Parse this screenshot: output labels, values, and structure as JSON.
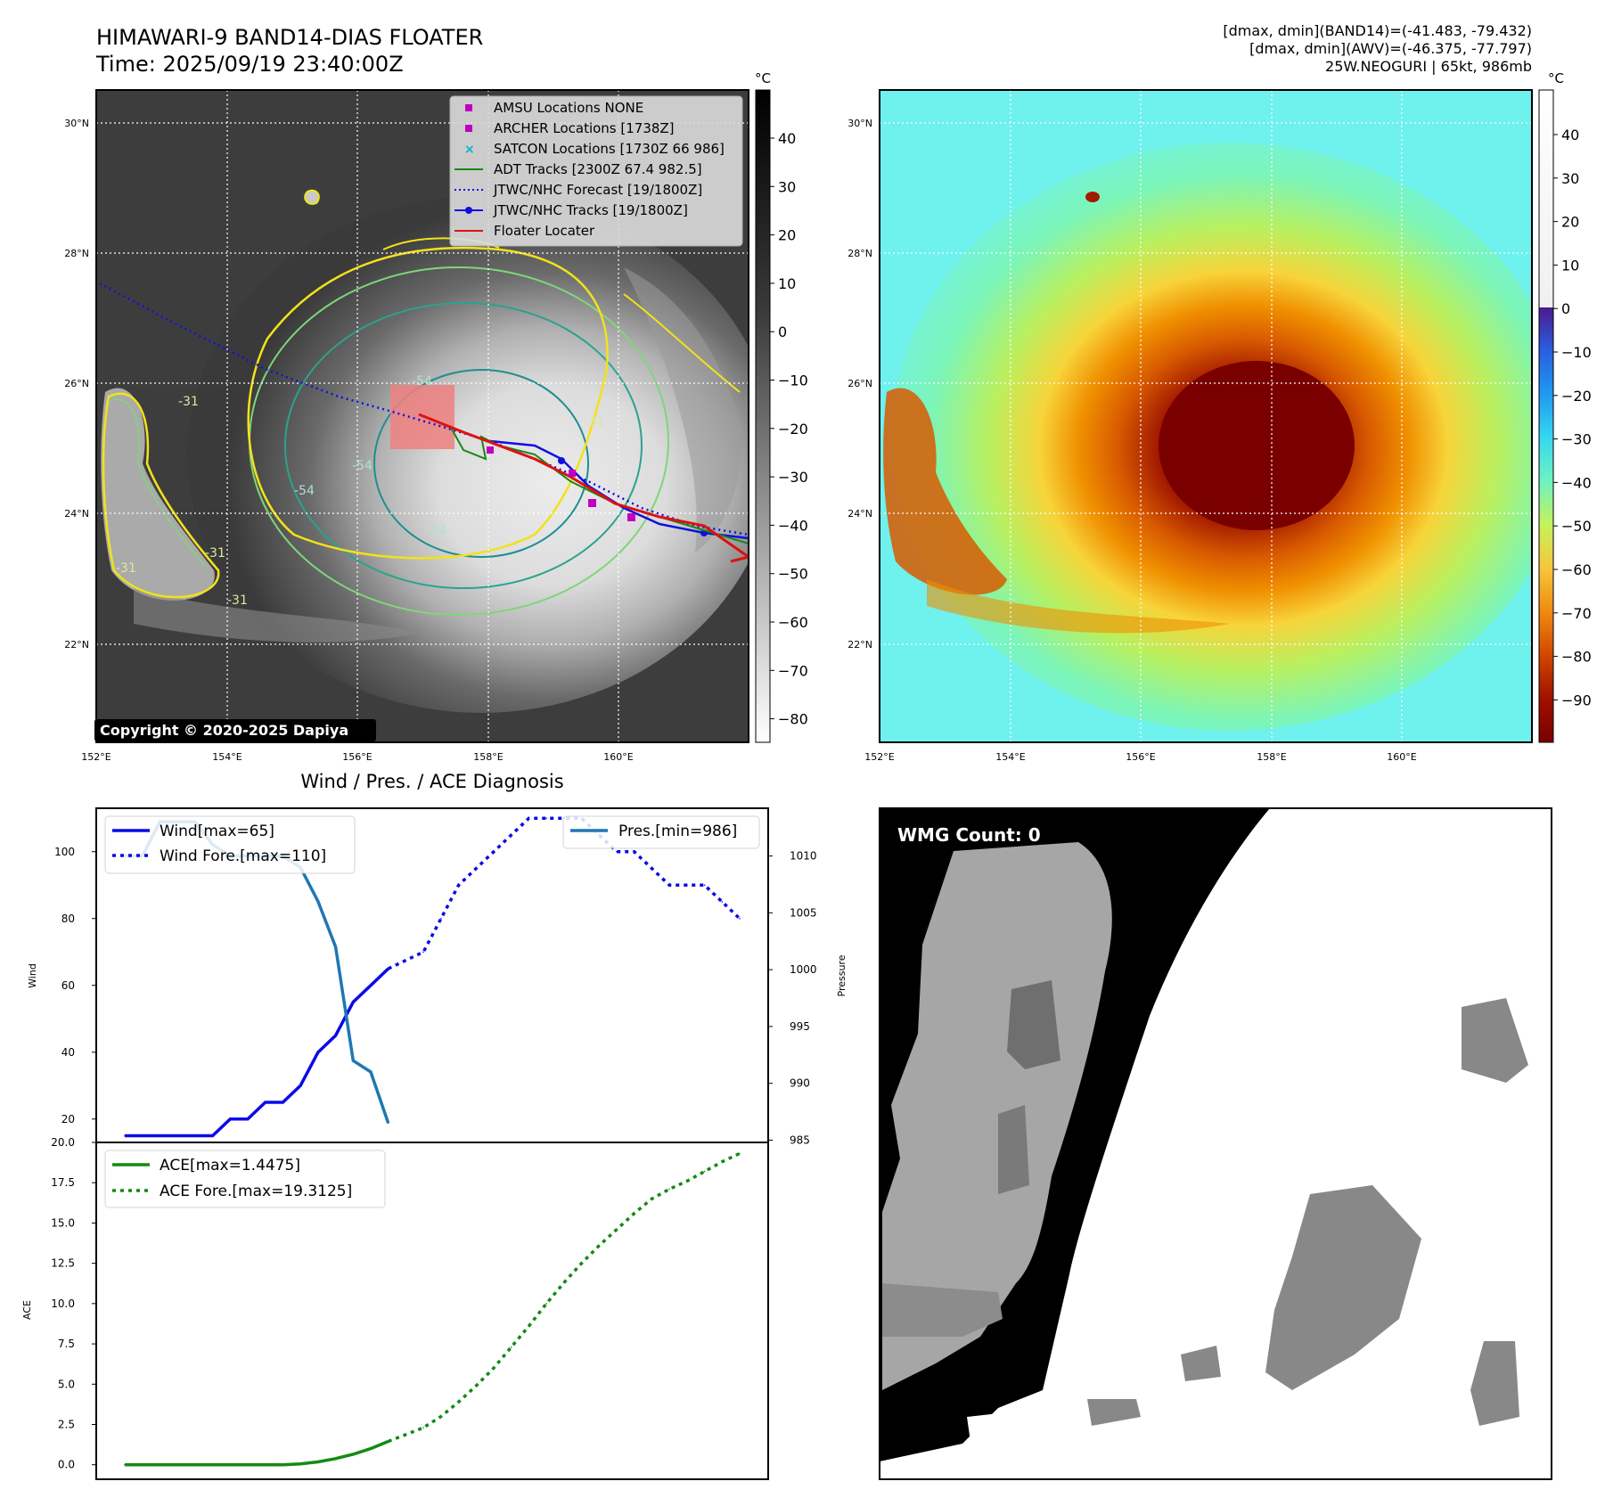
{
  "header": {
    "title_line1": "HIMAWARI-9 BAND14-DIAS FLOATER",
    "title_line2": "Time: 2025/09/19 23:40:00Z",
    "right_line1": "[dmax, dmin](BAND14)=(-41.483, -79.432)",
    "right_line2": "[dmax, dmin](AWV)=(-46.375, -77.797)",
    "right_line3": "25W.NEOGURI | 65kt, 986mb"
  },
  "maps": {
    "lat_labels": [
      "30°N",
      "28°N",
      "26°N",
      "24°N",
      "22°N"
    ],
    "lon_labels": [
      "152°E",
      "154°E",
      "156°E",
      "158°E",
      "160°E"
    ],
    "copyright": "Copyright © 2020-2025 Dapiya",
    "legend": [
      {
        "label": "AMSU Locations NONE",
        "kind": "square",
        "color": "#c000c0"
      },
      {
        "label": "ARCHER Locations [1738Z]",
        "kind": "square",
        "color": "#c000c0"
      },
      {
        "label": "SATCON Locations [1730Z 66 986]",
        "kind": "x",
        "color": "#00b5c8"
      },
      {
        "label": "ADT Tracks [2300Z 67.4 982.5]",
        "kind": "line",
        "color": "#138a13"
      },
      {
        "label": "JTWC/NHC Forecast [19/1800Z]",
        "kind": "dotted",
        "color": "#1010e0"
      },
      {
        "label": "JTWC/NHC Tracks [19/1800Z]",
        "kind": "dotline",
        "color": "#1010e0"
      },
      {
        "label": "Floater Locater",
        "kind": "line",
        "color": "#e01010"
      }
    ],
    "left_colorbar": {
      "unit": "°C",
      "ticks": [
        "40",
        "30",
        "20",
        "10",
        "0",
        "−10",
        "−20",
        "−30",
        "−40",
        "−50",
        "−60",
        "−70",
        "−80"
      ]
    },
    "right_colorbar": {
      "unit": "°C",
      "ticks": [
        "40",
        "30",
        "20",
        "10",
        "0",
        "−10",
        "−20",
        "−30",
        "−40",
        "−50",
        "−60",
        "−70",
        "−80",
        "−90"
      ]
    },
    "contour_labels": [
      "-31",
      "-31",
      "-31",
      "-31",
      "-31",
      "-54",
      "-54",
      "-54",
      "-54"
    ]
  },
  "wmg": {
    "label": "WMG Count: 0"
  },
  "chart_data": [
    {
      "type": "line",
      "title": "Wind / Pres. / ACE Diagnosis",
      "ylabel": "Wind",
      "ylabel2": "Pressure",
      "y_ticks": [
        "20",
        "40",
        "60",
        "80",
        "100"
      ],
      "y2_ticks": [
        "985",
        "990",
        "995",
        "1000",
        "1005",
        "1010"
      ],
      "ylim": [
        13,
        113
      ],
      "y2lim": [
        984.8,
        1014.2
      ],
      "legend_left": [
        "Wind[max=65]",
        "Wind Fore.[max=110]"
      ],
      "legend_right": [
        "Pres.[min=986]"
      ],
      "series": [
        {
          "name": "Wind[max=65]",
          "axis": "left",
          "style": "solid",
          "color": "#0a0ae8",
          "x": [
            0,
            1,
            2,
            3,
            4,
            5,
            6,
            7,
            8,
            9,
            10,
            11,
            12,
            13,
            14,
            15
          ],
          "values": [
            15,
            15,
            15,
            15,
            15,
            15,
            20,
            20,
            25,
            25,
            30,
            40,
            45,
            55,
            60,
            65
          ]
        },
        {
          "name": "Wind Fore.[max=110]",
          "axis": "left",
          "style": "dotted",
          "color": "#0a0ae8",
          "x": [
            15,
            17,
            18,
            19,
            20,
            21,
            22,
            23,
            24,
            25,
            26,
            27,
            28,
            29,
            30,
            31,
            32,
            33,
            34,
            35
          ],
          "values": [
            65,
            70,
            80,
            90,
            95,
            100,
            105,
            110,
            110,
            110,
            110,
            105,
            100,
            100,
            95,
            90,
            90,
            90,
            85,
            80
          ]
        },
        {
          "name": "Pres.[min=986]",
          "axis": "right",
          "style": "solid",
          "color": "#1f77b4",
          "x": [
            0,
            1,
            2,
            3,
            4,
            5,
            6,
            7,
            8,
            9,
            10,
            11,
            12,
            13,
            14,
            15
          ],
          "values": [
            1010,
            1010,
            1013,
            1013,
            1013,
            1011,
            1010,
            1010,
            1010,
            1010,
            1009,
            1006,
            1002,
            992,
            991,
            986.5
          ]
        }
      ],
      "x_min": 0,
      "x_max": 35
    },
    {
      "type": "line",
      "ylabel": "ACE",
      "y_ticks": [
        "0.0",
        "2.5",
        "5.0",
        "7.5",
        "10.0",
        "12.5",
        "15.0",
        "17.5",
        "20.0"
      ],
      "ylim": [
        -0.9,
        20.0
      ],
      "legend": [
        "ACE[max=1.4475]",
        "ACE Fore.[max=19.3125]"
      ],
      "series": [
        {
          "name": "ACE[max=1.4475]",
          "style": "solid",
          "color": "#138a13",
          "x": [
            0,
            2,
            4,
            6,
            8,
            9,
            10,
            11,
            12,
            13,
            14,
            15
          ],
          "values": [
            0,
            0,
            0,
            0,
            0,
            0,
            0.05,
            0.18,
            0.38,
            0.65,
            1.0,
            1.4475
          ]
        },
        {
          "name": "ACE Fore.[max=19.3125]",
          "style": "dotted",
          "color": "#138a13",
          "x": [
            15,
            17,
            18,
            19,
            20,
            21,
            22,
            23,
            24,
            25,
            26,
            27,
            28,
            29,
            30,
            31,
            32,
            33,
            34,
            35
          ],
          "values": [
            1.4475,
            2.3,
            3.0,
            3.9,
            4.9,
            6.0,
            7.3,
            8.6,
            10.0,
            11.3,
            12.5,
            13.6,
            14.6,
            15.6,
            16.5,
            17.1,
            17.6,
            18.2,
            18.8,
            19.3125
          ]
        }
      ],
      "x_min": 0,
      "x_max": 35
    }
  ]
}
